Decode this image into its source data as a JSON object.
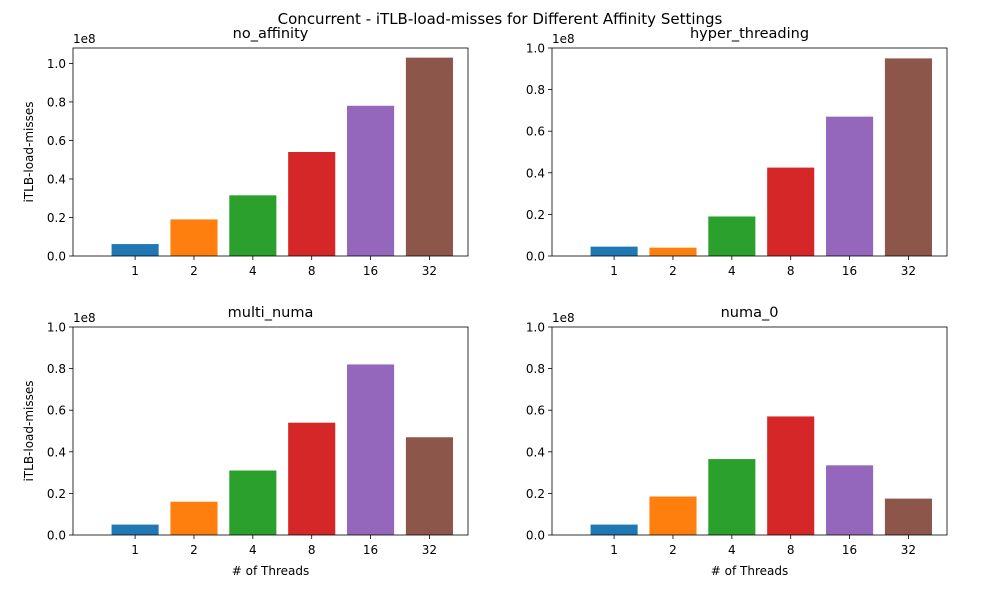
{
  "figure": {
    "suptitle": "Concurrent - iTLB-load-misses for Different Affinity Settings"
  },
  "colors": [
    "#1f77b4",
    "#ff7f0e",
    "#2ca02c",
    "#d62728",
    "#9467bd",
    "#8c564b"
  ],
  "chart_data": [
    {
      "type": "bar",
      "title": "no_affinity",
      "categories": [
        "1",
        "2",
        "4",
        "8",
        "16",
        "32"
      ],
      "values": [
        6200000,
        19000000,
        31500000,
        54000000,
        78000000,
        103000000
      ],
      "xlabel": "",
      "ylabel": "iTLB-load-misses",
      "ylim": [
        0,
        108000000
      ],
      "yticks": [
        "0.0",
        "0.2",
        "0.4",
        "0.6",
        "0.8",
        "1.0"
      ],
      "offset_label": "1e8"
    },
    {
      "type": "bar",
      "title": "hyper_threading",
      "categories": [
        "1",
        "2",
        "4",
        "8",
        "16",
        "32"
      ],
      "values": [
        4500000,
        4000000,
        19000000,
        42500000,
        67000000,
        95000000
      ],
      "xlabel": "",
      "ylabel": "",
      "ylim": [
        0,
        100000000
      ],
      "yticks": [
        "0.0",
        "0.2",
        "0.4",
        "0.6",
        "0.8",
        "1.0"
      ],
      "offset_label": "1e8"
    },
    {
      "type": "bar",
      "title": "multi_numa",
      "categories": [
        "1",
        "2",
        "4",
        "8",
        "16",
        "32"
      ],
      "values": [
        5000000,
        16000000,
        31000000,
        54000000,
        82000000,
        47000000
      ],
      "xlabel": "# of Threads",
      "ylabel": "iTLB-load-misses",
      "ylim": [
        0,
        100000000
      ],
      "yticks": [
        "0.0",
        "0.2",
        "0.4",
        "0.6",
        "0.8",
        "1.0"
      ],
      "offset_label": "1e8"
    },
    {
      "type": "bar",
      "title": "numa_0",
      "categories": [
        "1",
        "2",
        "4",
        "8",
        "16",
        "32"
      ],
      "values": [
        5000000,
        18500000,
        36500000,
        57000000,
        33500000,
        17500000
      ],
      "xlabel": "# of Threads",
      "ylabel": "",
      "ylim": [
        0,
        100000000
      ],
      "yticks": [
        "0.0",
        "0.2",
        "0.4",
        "0.6",
        "0.8",
        "1.0"
      ],
      "offset_label": "1e8"
    }
  ]
}
